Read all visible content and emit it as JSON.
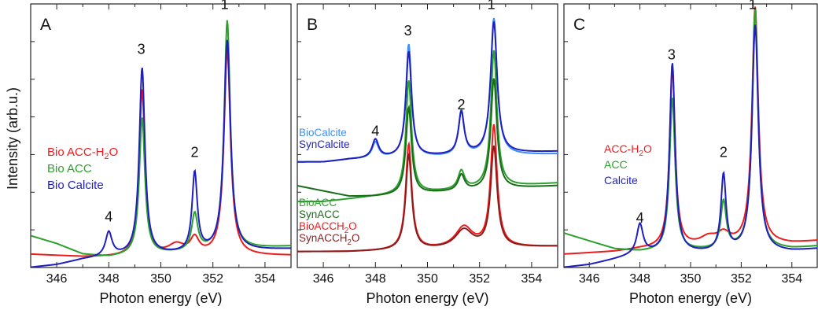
{
  "ylabel": "Intensity (arb.u.)",
  "chart_data": [
    {
      "type": "line",
      "panel_label": "A",
      "xlabel": "Photon energy (eV)",
      "xlim": [
        345,
        355
      ],
      "xticks": [
        346,
        348,
        350,
        352,
        354
      ],
      "legend_position": "left",
      "legend": [
        {
          "text": "Bio ACC-H",
          "sub": "2",
          "tail": "O",
          "color": "#ee1c1c"
        },
        {
          "text": "Bio ACC",
          "sub": "",
          "tail": "",
          "color": "#2ca02c"
        },
        {
          "text": "Bio Calcite",
          "sub": "",
          "tail": "",
          "color": "#1f1fbf"
        }
      ],
      "peak_labels": [
        {
          "text": "1",
          "x": 352.45,
          "y": 0.98
        },
        {
          "text": "2",
          "x": 351.3,
          "y": 0.42
        },
        {
          "text": "3",
          "x": 349.25,
          "y": 0.81
        },
        {
          "text": "4",
          "x": 348.0,
          "y": 0.175
        }
      ],
      "series": [
        {
          "color": "#ee1c1c",
          "baseline": 0.06,
          "peaks": [
            [
              352.55,
              0.78,
              0.15
            ],
            [
              349.28,
              0.63,
              0.13
            ],
            [
              351.3,
              0.06,
              0.2
            ],
            [
              350.6,
              0.04,
              0.4
            ]
          ],
          "tail": [
            [
              345,
              0.05
            ],
            [
              346,
              0.045
            ],
            [
              347,
              0.04
            ],
            [
              348,
              0.04
            ],
            [
              355,
              0.045
            ]
          ]
        },
        {
          "color": "#2ca02c",
          "baseline": 0.07,
          "peaks": [
            [
              352.55,
              0.87,
              0.14
            ],
            [
              349.28,
              0.52,
              0.13
            ],
            [
              351.3,
              0.14,
              0.14
            ]
          ],
          "tail": [
            [
              345,
              0.12
            ],
            [
              346,
              0.09
            ],
            [
              347,
              0.05
            ],
            [
              348,
              0.04
            ],
            [
              355,
              0.08
            ]
          ]
        },
        {
          "color": "#1f1fbf",
          "baseline": 0.05,
          "peaks": [
            [
              352.55,
              0.8,
              0.15
            ],
            [
              349.28,
              0.71,
              0.13
            ],
            [
              351.3,
              0.3,
              0.12
            ],
            [
              348.0,
              0.09,
              0.15
            ]
          ],
          "tail": [
            [
              345,
              0.0
            ],
            [
              346,
              0.01
            ],
            [
              347,
              0.03
            ],
            [
              348,
              0.04
            ],
            [
              355,
              0.07
            ]
          ]
        }
      ]
    },
    {
      "type": "line",
      "panel_label": "B",
      "xlabel": "Photon energy (eV)",
      "xlim": [
        345,
        355
      ],
      "xticks": [
        346,
        348,
        350,
        352,
        354
      ],
      "legend_position": "left",
      "legend": [
        {
          "text": "BioCalcite",
          "sub": "",
          "tail": "",
          "color": "#3f8ff5"
        },
        {
          "text": "SynCalcite",
          "sub": "",
          "tail": "",
          "color": "#1f1fbf"
        },
        {
          "text": "BioACC",
          "sub": "",
          "tail": "",
          "color": "#2ca02c"
        },
        {
          "text": "SynACC",
          "sub": "",
          "tail": "",
          "color": "#1a6b1a"
        },
        {
          "text": "BioACCH",
          "sub": "2",
          "tail": "O",
          "color": "#ee1c1c"
        },
        {
          "text": "SynACCH",
          "sub": "2",
          "tail": "O",
          "color": "#8b1c1c"
        }
      ],
      "peak_labels": [
        {
          "text": "1",
          "x": 352.45,
          "y": 0.98
        },
        {
          "text": "2",
          "x": 351.3,
          "y": 0.6
        },
        {
          "text": "3",
          "x": 349.25,
          "y": 0.88
        },
        {
          "text": "4",
          "x": 348.0,
          "y": 0.5
        }
      ],
      "series": [
        {
          "color": "#3f8ff5",
          "baseline": 0.43,
          "peaks": [
            [
              352.55,
              0.52,
              0.15
            ],
            [
              349.28,
              0.43,
              0.13
            ],
            [
              351.3,
              0.17,
              0.13
            ],
            [
              348.0,
              0.06,
              0.15
            ]
          ],
          "tail": [
            [
              345,
              0.4
            ],
            [
              346,
              0.4
            ],
            [
              347,
              0.41
            ],
            [
              355,
              0.43
            ]
          ]
        },
        {
          "color": "#1f1fbf",
          "baseline": 0.43,
          "peaks": [
            [
              352.55,
              0.5,
              0.15
            ],
            [
              349.28,
              0.4,
              0.13
            ],
            [
              351.3,
              0.16,
              0.13
            ],
            [
              348.0,
              0.07,
              0.15
            ]
          ],
          "tail": [
            [
              345,
              0.4
            ],
            [
              346,
              0.4
            ],
            [
              347,
              0.41
            ],
            [
              355,
              0.44
            ]
          ]
        },
        {
          "color": "#2ca02c",
          "baseline": 0.29,
          "peaks": [
            [
              352.55,
              0.52,
              0.14
            ],
            [
              349.28,
              0.43,
              0.13
            ],
            [
              351.3,
              0.07,
              0.15
            ]
          ],
          "tail": [
            [
              345,
              0.25
            ],
            [
              346,
              0.25
            ],
            [
              347,
              0.26
            ],
            [
              348,
              0.27
            ],
            [
              355,
              0.32
            ]
          ]
        },
        {
          "color": "#1a6b1a",
          "baseline": 0.29,
          "peaks": [
            [
              352.55,
              0.42,
              0.14
            ],
            [
              349.28,
              0.33,
              0.13
            ],
            [
              351.3,
              0.06,
              0.15
            ]
          ],
          "tail": [
            [
              345,
              0.31
            ],
            [
              346,
              0.29
            ],
            [
              347,
              0.27
            ],
            [
              348,
              0.27
            ],
            [
              355,
              0.31
            ]
          ]
        },
        {
          "color": "#ee1c1c",
          "baseline": 0.06,
          "peaks": [
            [
              352.55,
              0.46,
              0.15
            ],
            [
              349.28,
              0.4,
              0.14
            ],
            [
              351.4,
              0.08,
              0.4
            ]
          ],
          "tail": [
            [
              345,
              0.06
            ],
            [
              347,
              0.06
            ],
            [
              355,
              0.08
            ]
          ]
        },
        {
          "color": "#8b1c1c",
          "baseline": 0.06,
          "peaks": [
            [
              352.55,
              0.38,
              0.15
            ],
            [
              349.28,
              0.36,
              0.14
            ],
            [
              351.4,
              0.07,
              0.4
            ]
          ],
          "tail": [
            [
              345,
              0.06
            ],
            [
              347,
              0.06
            ],
            [
              355,
              0.08
            ]
          ]
        }
      ]
    },
    {
      "type": "line",
      "panel_label": "C",
      "xlabel": "Photon energy (eV)",
      "xlim": [
        345,
        355
      ],
      "xticks": [
        346,
        348,
        350,
        352,
        354
      ],
      "legend_position": "left",
      "legend": [
        {
          "text": "ACC-H",
          "sub": "2",
          "tail": "O",
          "color": "#ee1c1c"
        },
        {
          "text": "ACC",
          "sub": "",
          "tail": "",
          "color": "#2ca02c"
        },
        {
          "text": "Calcite",
          "sub": "",
          "tail": "",
          "color": "#1f1fbf"
        }
      ],
      "peak_labels": [
        {
          "text": "1",
          "x": 352.45,
          "y": 0.98
        },
        {
          "text": "2",
          "x": 351.3,
          "y": 0.42
        },
        {
          "text": "3",
          "x": 349.25,
          "y": 0.79
        },
        {
          "text": "4",
          "x": 348.0,
          "y": 0.17
        }
      ],
      "series": [
        {
          "color": "#ee1c1c",
          "baseline": 0.05,
          "peaks": [
            [
              352.55,
              0.9,
              0.15
            ],
            [
              349.28,
              0.68,
              0.13
            ],
            [
              351.3,
              0.04,
              0.3
            ],
            [
              350.7,
              0.03,
              0.4
            ]
          ],
          "tail": [
            [
              345,
              0.05
            ],
            [
              347,
              0.06
            ],
            [
              348,
              0.07
            ],
            [
              354,
              0.09
            ],
            [
              355,
              0.1
            ]
          ]
        },
        {
          "color": "#2ca02c",
          "baseline": 0.05,
          "peaks": [
            [
              352.55,
              0.91,
              0.14
            ],
            [
              349.28,
              0.58,
              0.13
            ],
            [
              351.3,
              0.18,
              0.13
            ]
          ],
          "tail": [
            [
              345,
              0.13
            ],
            [
              346,
              0.1
            ],
            [
              347,
              0.07
            ],
            [
              348,
              0.06
            ],
            [
              354,
              0.07
            ],
            [
              355,
              0.08
            ]
          ]
        },
        {
          "color": "#1f1fbf",
          "baseline": 0.05,
          "peaks": [
            [
              352.55,
              0.86,
              0.15
            ],
            [
              349.28,
              0.72,
              0.13
            ],
            [
              351.3,
              0.29,
              0.12
            ],
            [
              348.0,
              0.11,
              0.15
            ]
          ],
          "tail": [
            [
              345,
              0.0
            ],
            [
              346,
              0.01
            ],
            [
              347,
              0.03
            ],
            [
              348,
              0.05
            ],
            [
              354,
              0.06
            ],
            [
              355,
              0.07
            ]
          ]
        }
      ]
    }
  ]
}
